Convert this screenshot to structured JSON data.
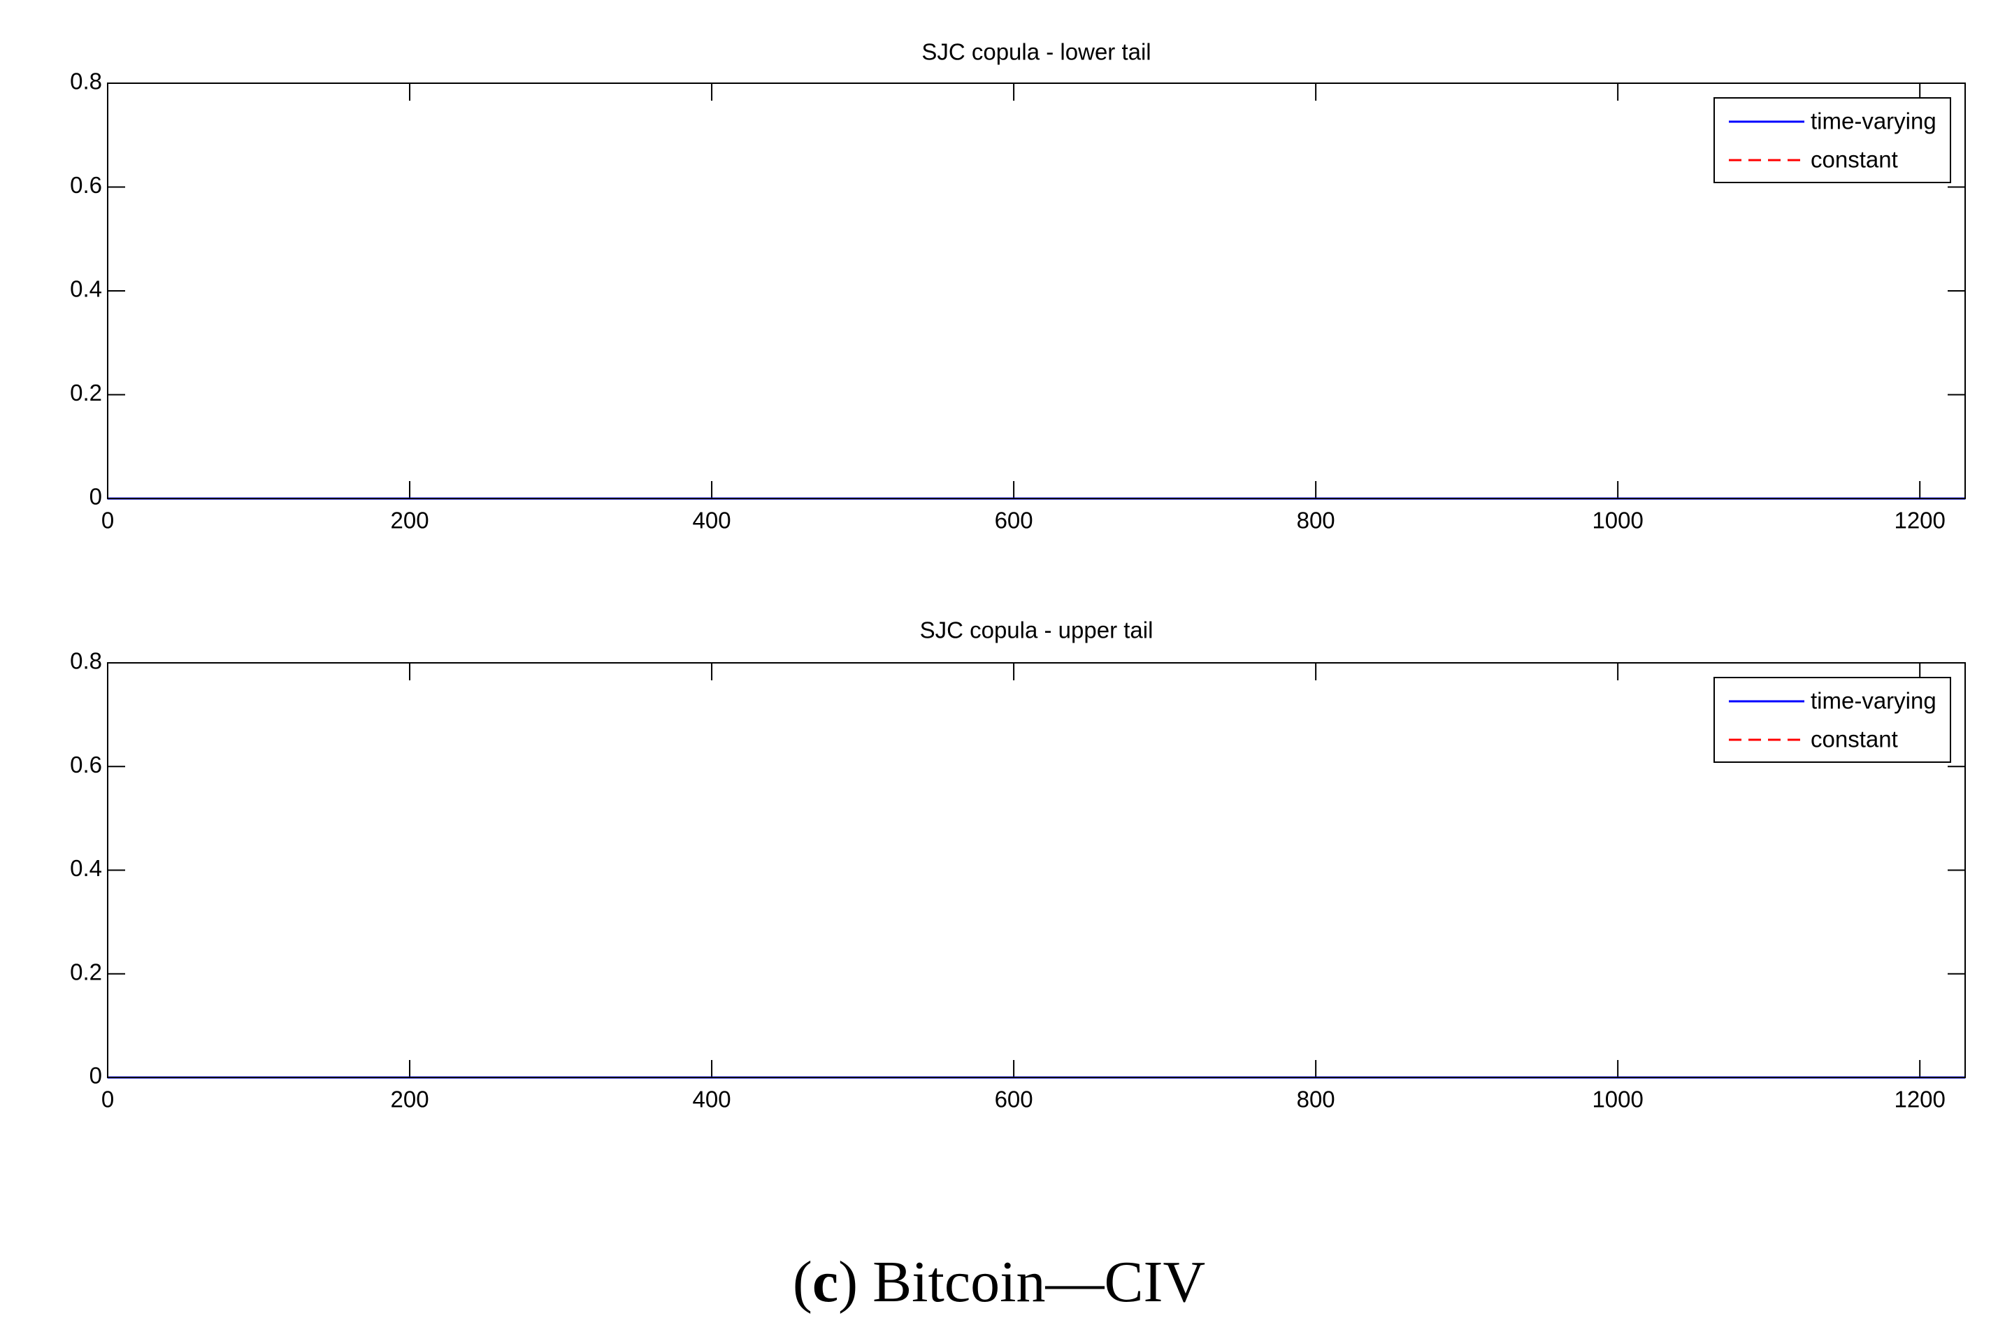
{
  "chart_data": [
    {
      "type": "line",
      "title": "SJC copula - lower tail",
      "x": [
        0,
        1230
      ],
      "series": [
        {
          "name": "time-varying",
          "color": "#0000ff",
          "style": "solid",
          "values": [
            0,
            0
          ]
        },
        {
          "name": "constant",
          "color": "#ff0000",
          "style": "dashed",
          "values": [
            0,
            0
          ]
        }
      ],
      "xlim": [
        0,
        1230
      ],
      "xticks": [
        0,
        200,
        400,
        600,
        800,
        1000,
        1200
      ],
      "ylim": [
        0,
        0.8
      ],
      "yticks": [
        0,
        0.2,
        0.4,
        0.6,
        0.8
      ],
      "grid": false,
      "legend": "upper right"
    },
    {
      "type": "line",
      "title": "SJC copula - upper tail",
      "x": [
        0,
        1230
      ],
      "series": [
        {
          "name": "time-varying",
          "color": "#0000ff",
          "style": "solid",
          "values": [
            0,
            0
          ]
        },
        {
          "name": "constant",
          "color": "#ff0000",
          "style": "dashed",
          "values": [
            0,
            0
          ]
        }
      ],
      "xlim": [
        0,
        1230
      ],
      "xticks": [
        0,
        200,
        400,
        600,
        800,
        1000,
        1200
      ],
      "ylim": [
        0,
        0.8
      ],
      "yticks": [
        0,
        0.2,
        0.4,
        0.6,
        0.8
      ],
      "grid": false,
      "legend": "upper right"
    }
  ],
  "caption_parts": [
    "(",
    "c",
    ") Bitcoin—CIV"
  ]
}
